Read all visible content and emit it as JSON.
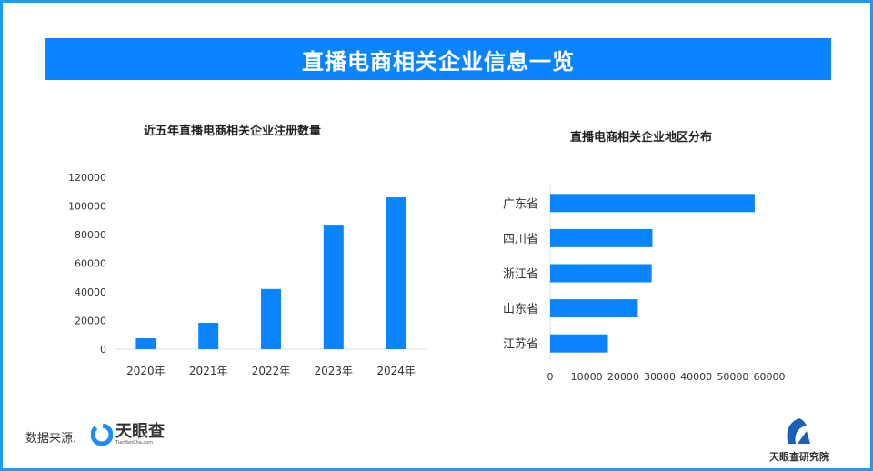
{
  "header": {
    "title": "直播电商相关企业信息一览"
  },
  "footer": {
    "source_label": "数据来源:",
    "source_logo_text": "天眼查",
    "source_logo_sub": "TianYanCha.com",
    "brand_text": "天眼查研究院"
  },
  "colors": {
    "bar": "#0a84ff",
    "banner": "#0a84ff",
    "frame": "#1e9cf2"
  },
  "chart_data": [
    {
      "type": "bar",
      "title": "近五年直播电商相关企业注册数量",
      "categories": [
        "2020年",
        "2021年",
        "2022年",
        "2023年",
        "2024年"
      ],
      "values": [
        7600,
        18400,
        42000,
        86300,
        106000
      ],
      "ylim": [
        0,
        120000
      ],
      "yticks": [
        "0",
        "20000",
        "40000",
        "60000",
        "80000",
        "100000",
        "120000"
      ],
      "grid": false
    },
    {
      "type": "bar",
      "orientation": "horizontal",
      "title": "直播电商相关企业地区分布",
      "categories": [
        "广东省",
        "四川省",
        "浙江省",
        "山东省",
        "江苏省"
      ],
      "values": [
        56000,
        28000,
        27800,
        24000,
        15800
      ],
      "xlim": [
        0,
        60000
      ],
      "xticks": [
        "0",
        "10000",
        "20000",
        "30000",
        "40000",
        "50000",
        "60000"
      ],
      "grid": false
    }
  ]
}
